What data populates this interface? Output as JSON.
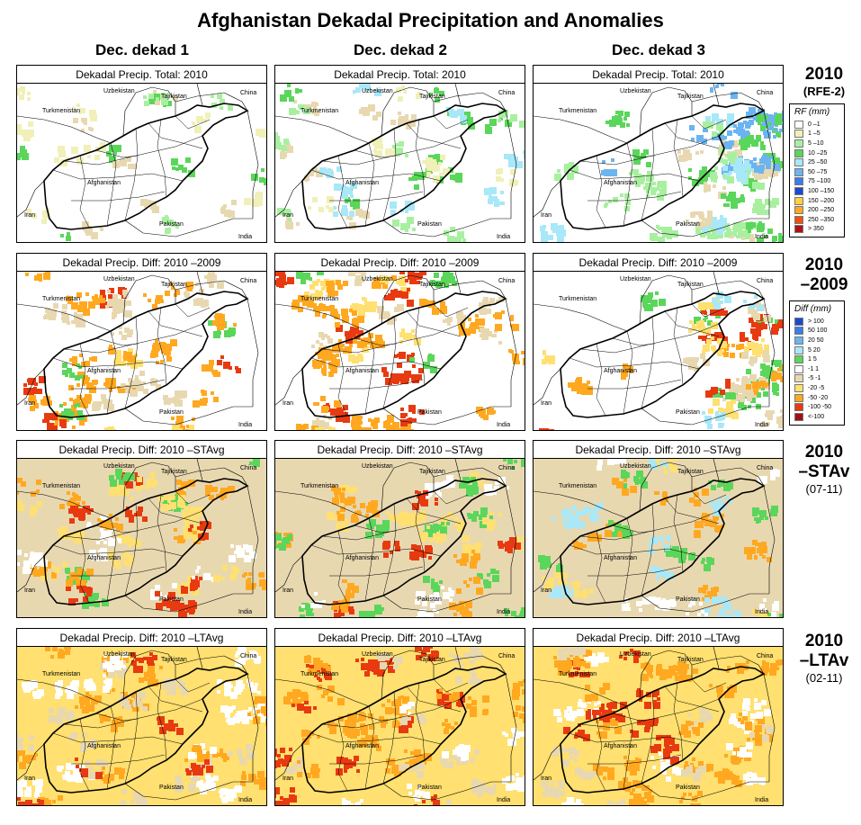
{
  "title": "Afghanistan Dekadal Precipitation and Anomalies",
  "columns": [
    "Dec. dekad 1",
    "Dec. dekad 2",
    "Dec. dekad 3"
  ],
  "rows": [
    {
      "label_main": "2010",
      "label_sub": "(RFE-2)",
      "panel_title": "Dekadal Precip. Total: 2010",
      "kind": "total",
      "intensity": [
        0.15,
        0.45,
        0.8
      ]
    },
    {
      "label_main": "2010\n–2009",
      "label_sub": "",
      "panel_title": "Dekadal Precip. Diff:  2010 –2009",
      "kind": "diff2009",
      "intensity": [
        0.6,
        0.7,
        0.5
      ]
    },
    {
      "label_main": "2010\n–STAv",
      "label_sub": "(07-11)",
      "panel_title": "Dekadal Precip. Diff:  2010 –STAvg",
      "kind": "stavg",
      "intensity": [
        0.6,
        0.6,
        0.5
      ]
    },
    {
      "label_main": "2010\n–LTAv",
      "label_sub": "(02-11)",
      "panel_title": "Dekadal Precip. Diff:  2010 –LTAvg",
      "kind": "ltavg",
      "intensity": [
        0.7,
        0.7,
        0.8
      ]
    }
  ],
  "place_labels": [
    "Uzbekistan",
    "Tajikistan",
    "China",
    "Turkmenistan",
    "Afghanistan",
    "Iran",
    "Pakistan",
    "India"
  ],
  "legend_rf": {
    "title": "RF (mm)",
    "items": [
      {
        "label": "0 –1",
        "color": "#ffffff"
      },
      {
        "label": "1 –5",
        "color": "#f0f0b8"
      },
      {
        "label": "5 –10",
        "color": "#a8f0a0"
      },
      {
        "label": "10 –25",
        "color": "#5ad65a"
      },
      {
        "label": "25 –50",
        "color": "#a8e8f8"
      },
      {
        "label": "50 –75",
        "color": "#6cb4f0"
      },
      {
        "label": "75 –100",
        "color": "#3a7ee8"
      },
      {
        "label": "100 –150",
        "color": "#1a4ad0"
      },
      {
        "label": "150 –200",
        "color": "#ffd040"
      },
      {
        "label": "200 –250",
        "color": "#ffa820"
      },
      {
        "label": "250 –350",
        "color": "#f05010"
      },
      {
        "label": "> 350",
        "color": "#b01010"
      }
    ]
  },
  "legend_diff": {
    "title": "Diff (mm)",
    "items": [
      {
        "label": "> 100",
        "color": "#1a4ad0"
      },
      {
        "label": "50  100",
        "color": "#3a7ee8"
      },
      {
        "label": "20  50",
        "color": "#6cb4f0"
      },
      {
        "label": "5  20",
        "color": "#a8e8f8"
      },
      {
        "label": "1   5",
        "color": "#5ad65a"
      },
      {
        "label": "-1   1",
        "color": "#ffffff"
      },
      {
        "label": "-5  -1",
        "color": "#e8d8b0"
      },
      {
        "label": "-20  -5",
        "color": "#ffe070"
      },
      {
        "label": "-50 -20",
        "color": "#ffa820"
      },
      {
        "label": "-100 -50",
        "color": "#e83a10"
      },
      {
        "label": "<-100",
        "color": "#a01010"
      }
    ]
  }
}
